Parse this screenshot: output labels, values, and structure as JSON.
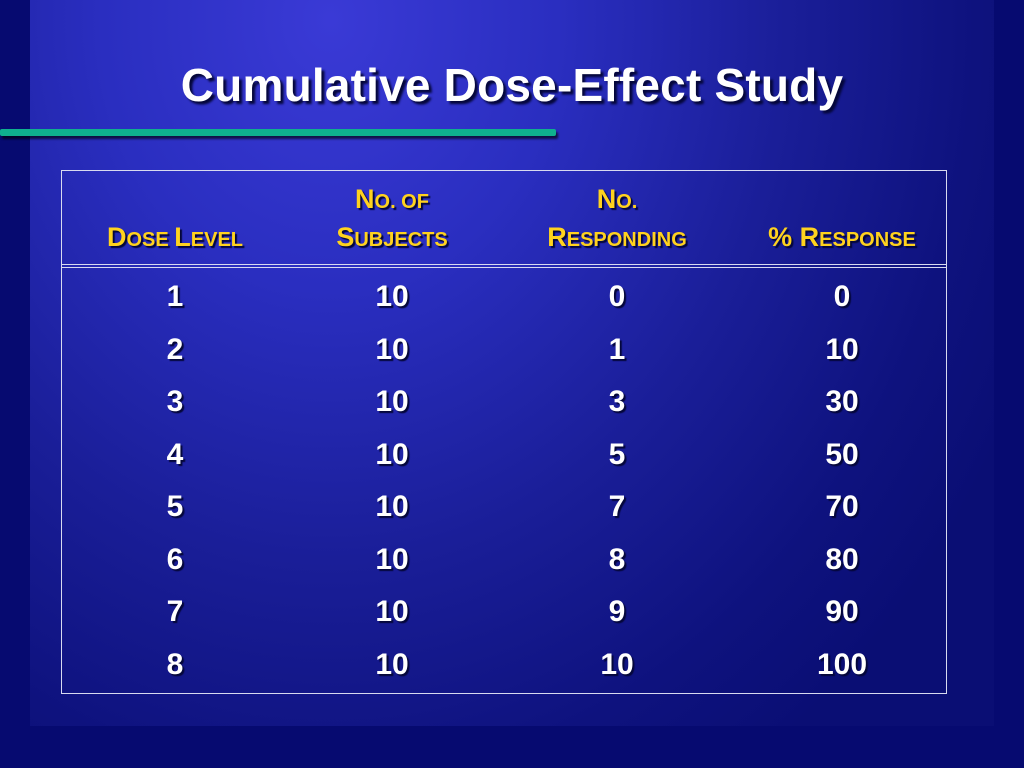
{
  "slide": {
    "title": "Cumulative Dose-Effect Study",
    "colors": {
      "background": "#2a2ec0",
      "accent_rule": "#0fb08e",
      "header_text": "#ffd21e",
      "body_text": "#ffffff",
      "grid_lines": "#d8daf0"
    }
  },
  "table": {
    "headers": [
      {
        "line1": [
          {
            "t": "",
            "sm": false
          }
        ],
        "line2": [
          {
            "t": "D",
            "sm": false
          },
          {
            "t": "OSE ",
            "sm": true
          },
          {
            "t": "L",
            "sm": false
          },
          {
            "t": "EVEL",
            "sm": true
          }
        ]
      },
      {
        "line1": [
          {
            "t": "N",
            "sm": false
          },
          {
            "t": "O. OF",
            "sm": true
          }
        ],
        "line2": [
          {
            "t": "S",
            "sm": false
          },
          {
            "t": "UBJECTS",
            "sm": true
          }
        ]
      },
      {
        "line1": [
          {
            "t": "N",
            "sm": false
          },
          {
            "t": "O.",
            "sm": true
          }
        ],
        "line2": [
          {
            "t": "R",
            "sm": false
          },
          {
            "t": "ESPONDING",
            "sm": true
          }
        ]
      },
      {
        "line1": [
          {
            "t": "",
            "sm": false
          }
        ],
        "line2": [
          {
            "t": "% R",
            "sm": false
          },
          {
            "t": "ESPONSE",
            "sm": true
          }
        ]
      }
    ],
    "rows": [
      [
        "1",
        "10",
        "0",
        "0"
      ],
      [
        "2",
        "10",
        "1",
        "10"
      ],
      [
        "3",
        "10",
        "3",
        "30"
      ],
      [
        "4",
        "10",
        "5",
        "50"
      ],
      [
        "5",
        "10",
        "7",
        "70"
      ],
      [
        "6",
        "10",
        "8",
        "80"
      ],
      [
        "7",
        "10",
        "9",
        "90"
      ],
      [
        "8",
        "10",
        "10",
        "100"
      ]
    ]
  }
}
